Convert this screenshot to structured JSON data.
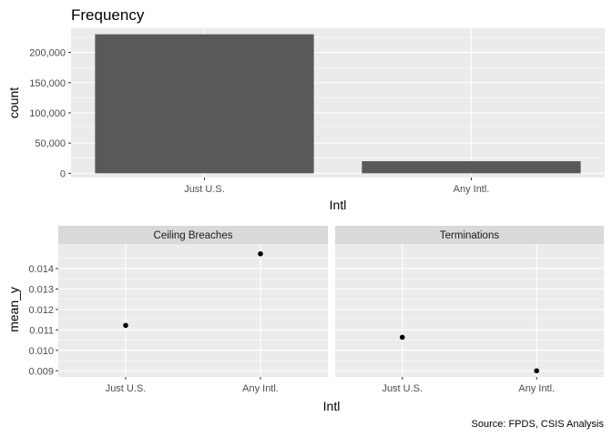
{
  "caption": "Source: FPDS, CSIS Analysis",
  "colors": {
    "panel_bg": "#EBEBEB",
    "strip_bg": "#D9D9D9",
    "bar": "#595959",
    "point": "#000000",
    "grid": "#FFFFFF"
  },
  "chart_data": [
    {
      "type": "bar",
      "title": "Frequency",
      "xlabel": "Intl",
      "ylabel": "count",
      "categories": [
        "Just U.S.",
        "Any Intl."
      ],
      "values": [
        230000,
        20000
      ],
      "ylim": [
        -7000,
        240000
      ],
      "yticks": [
        0,
        50000,
        100000,
        150000,
        200000
      ],
      "ytick_labels": [
        "0",
        "50,000",
        "100,000",
        "150,000",
        "200,000"
      ],
      "grid": true
    },
    {
      "type": "scatter",
      "xlabel": "Intl",
      "ylabel": "mean_y",
      "categories": [
        "Just U.S.",
        "Any Intl."
      ],
      "ylim": [
        0.0087,
        0.0152
      ],
      "yticks": [
        0.009,
        0.01,
        0.011,
        0.012,
        0.013,
        0.014
      ],
      "ytick_labels": [
        "0.009",
        "0.010",
        "0.011",
        "0.012",
        "0.013",
        "0.014"
      ],
      "grid": true,
      "facets": [
        {
          "label": "Ceiling Breaches",
          "values": [
            0.01122,
            0.01472
          ]
        },
        {
          "label": "Terminations",
          "values": [
            0.01064,
            0.009
          ]
        }
      ]
    }
  ]
}
